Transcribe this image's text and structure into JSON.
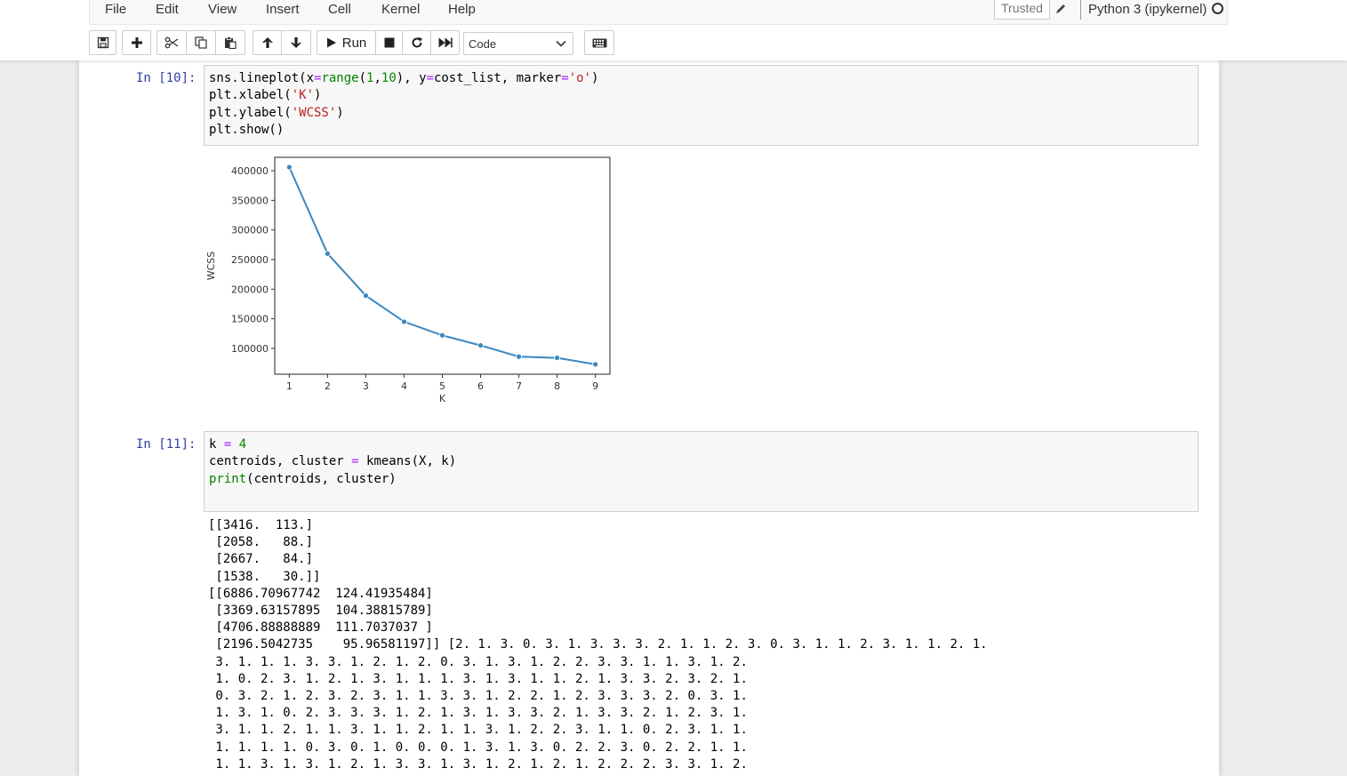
{
  "menu": {
    "items": [
      "File",
      "Edit",
      "View",
      "Insert",
      "Cell",
      "Kernel",
      "Help"
    ],
    "trusted": "Trusted",
    "kernel_name": "Python 3 (ipykernel)"
  },
  "toolbar": {
    "run_label": "Run",
    "cell_type": "Code"
  },
  "cells": [
    {
      "prompt": "In [10]:",
      "code_lines": [
        "sns.lineplot(x=range(1,10), y=cost_list, marker='o')",
        "plt.xlabel('K')",
        "plt.ylabel('WCSS')",
        "plt.show()"
      ]
    },
    {
      "prompt": "In [11]:",
      "code_lines": [
        "k = 4",
        "centroids, cluster = kmeans(X, k)",
        "print(centroids, cluster)"
      ],
      "output_lines": [
        "[[3416.  113.]",
        " [2058.   88.]",
        " [2667.   84.]",
        " [1538.   30.]]",
        "[[6886.70967742  124.41935484]",
        " [3369.63157895  104.38815789]",
        " [4706.88888889  111.7037037 ]",
        " [2196.5042735    95.96581197]] [2. 1. 3. 0. 3. 1. 3. 3. 3. 2. 1. 1. 2. 3. 0. 3. 1. 1. 2. 3. 1. 1. 2. 1.",
        " 3. 1. 1. 1. 3. 3. 1. 2. 1. 2. 0. 3. 1. 3. 1. 2. 2. 3. 3. 1. 1. 3. 1. 2.",
        " 1. 0. 2. 3. 1. 2. 1. 3. 1. 1. 1. 3. 1. 3. 1. 1. 2. 1. 3. 3. 2. 3. 2. 1.",
        " 0. 3. 2. 1. 2. 3. 2. 3. 1. 1. 3. 3. 1. 2. 2. 1. 2. 3. 3. 3. 2. 0. 3. 1.",
        " 1. 3. 1. 0. 2. 3. 3. 3. 1. 2. 1. 3. 1. 3. 3. 2. 1. 3. 3. 2. 1. 2. 3. 1.",
        " 3. 1. 1. 2. 1. 1. 3. 1. 1. 2. 1. 1. 3. 1. 2. 2. 3. 1. 1. 0. 2. 3. 1. 1.",
        " 1. 1. 1. 1. 0. 3. 0. 1. 0. 0. 0. 1. 3. 1. 3. 0. 2. 2. 3. 0. 2. 2. 1. 1.",
        " 1. 1. 3. 1. 3. 1. 2. 1. 3. 3. 1. 3. 1. 2. 1. 2. 1. 2. 2. 2. 3. 3. 1. 2."
      ]
    }
  ],
  "chart_data": {
    "type": "line",
    "x": [
      1,
      2,
      3,
      4,
      5,
      6,
      7,
      8,
      9
    ],
    "y": [
      406000,
      260000,
      189000,
      145000,
      122000,
      105000,
      86000,
      84000,
      73000
    ],
    "xlabel": "K",
    "ylabel": "WCSS",
    "xticks": [
      "1",
      "2",
      "3",
      "4",
      "5",
      "6",
      "7",
      "8",
      "9"
    ],
    "yticks": [
      100000,
      150000,
      200000,
      250000,
      300000,
      350000,
      400000
    ],
    "ytick_labels": [
      "100000",
      "150000",
      "200000",
      "250000",
      "300000",
      "350000",
      "400000"
    ],
    "xlim": [
      0.62,
      9.38
    ],
    "ylim": [
      56350,
      422650
    ],
    "marker": "o",
    "color": "#3a87c2",
    "grid": false
  }
}
